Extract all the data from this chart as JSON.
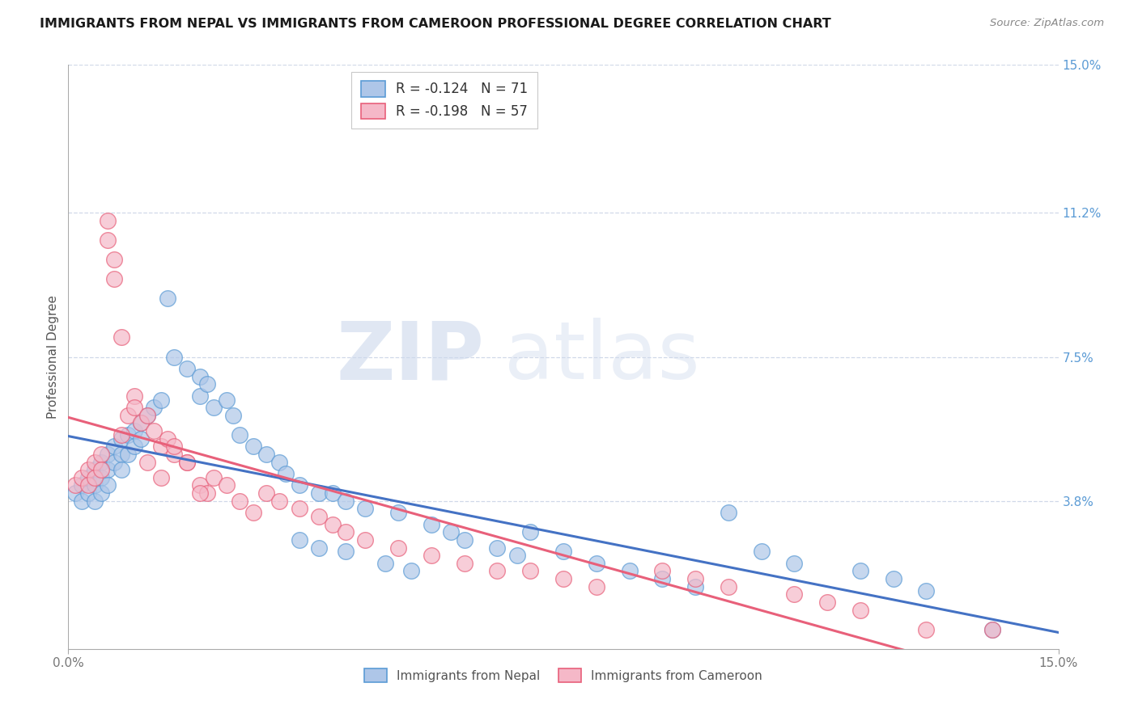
{
  "title": "IMMIGRANTS FROM NEPAL VS IMMIGRANTS FROM CAMEROON PROFESSIONAL DEGREE CORRELATION CHART",
  "source": "Source: ZipAtlas.com",
  "ylabel": "Professional Degree",
  "xlim": [
    0.0,
    0.15
  ],
  "ylim": [
    0.0,
    0.15
  ],
  "nepal_R": -0.124,
  "nepal_N": 71,
  "cameroon_R": -0.198,
  "cameroon_N": 57,
  "nepal_color": "#aec6e8",
  "cameroon_color": "#f5b8c8",
  "nepal_edge_color": "#5b9bd5",
  "cameroon_edge_color": "#e8607a",
  "nepal_line_color": "#4472c4",
  "cameroon_line_color": "#e8607a",
  "nepal_x": [
    0.001,
    0.002,
    0.002,
    0.003,
    0.003,
    0.004,
    0.004,
    0.004,
    0.005,
    0.005,
    0.005,
    0.006,
    0.006,
    0.006,
    0.007,
    0.007,
    0.008,
    0.008,
    0.008,
    0.009,
    0.009,
    0.01,
    0.01,
    0.011,
    0.011,
    0.012,
    0.013,
    0.014,
    0.015,
    0.016,
    0.018,
    0.02,
    0.02,
    0.021,
    0.022,
    0.024,
    0.025,
    0.026,
    0.028,
    0.03,
    0.032,
    0.033,
    0.035,
    0.038,
    0.04,
    0.042,
    0.045,
    0.05,
    0.055,
    0.058,
    0.06,
    0.065,
    0.068,
    0.07,
    0.075,
    0.08,
    0.085,
    0.09,
    0.095,
    0.1,
    0.105,
    0.11,
    0.12,
    0.125,
    0.13,
    0.035,
    0.038,
    0.042,
    0.048,
    0.052,
    0.14
  ],
  "nepal_y": [
    0.04,
    0.042,
    0.038,
    0.044,
    0.04,
    0.046,
    0.042,
    0.038,
    0.048,
    0.044,
    0.04,
    0.05,
    0.046,
    0.042,
    0.052,
    0.048,
    0.054,
    0.05,
    0.046,
    0.055,
    0.05,
    0.056,
    0.052,
    0.058,
    0.054,
    0.06,
    0.062,
    0.064,
    0.09,
    0.075,
    0.072,
    0.07,
    0.065,
    0.068,
    0.062,
    0.064,
    0.06,
    0.055,
    0.052,
    0.05,
    0.048,
    0.045,
    0.042,
    0.04,
    0.04,
    0.038,
    0.036,
    0.035,
    0.032,
    0.03,
    0.028,
    0.026,
    0.024,
    0.03,
    0.025,
    0.022,
    0.02,
    0.018,
    0.016,
    0.035,
    0.025,
    0.022,
    0.02,
    0.018,
    0.015,
    0.028,
    0.026,
    0.025,
    0.022,
    0.02,
    0.005
  ],
  "cameroon_x": [
    0.001,
    0.002,
    0.003,
    0.003,
    0.004,
    0.004,
    0.005,
    0.005,
    0.006,
    0.006,
    0.007,
    0.007,
    0.008,
    0.008,
    0.009,
    0.01,
    0.01,
    0.011,
    0.012,
    0.013,
    0.014,
    0.015,
    0.016,
    0.018,
    0.02,
    0.021,
    0.022,
    0.024,
    0.026,
    0.028,
    0.03,
    0.032,
    0.035,
    0.038,
    0.04,
    0.042,
    0.045,
    0.05,
    0.055,
    0.06,
    0.065,
    0.07,
    0.075,
    0.08,
    0.09,
    0.095,
    0.1,
    0.11,
    0.115,
    0.12,
    0.13,
    0.012,
    0.014,
    0.016,
    0.018,
    0.02,
    0.14
  ],
  "cameroon_y": [
    0.042,
    0.044,
    0.046,
    0.042,
    0.048,
    0.044,
    0.05,
    0.046,
    0.11,
    0.105,
    0.1,
    0.095,
    0.055,
    0.08,
    0.06,
    0.065,
    0.062,
    0.058,
    0.06,
    0.056,
    0.052,
    0.054,
    0.05,
    0.048,
    0.042,
    0.04,
    0.044,
    0.042,
    0.038,
    0.035,
    0.04,
    0.038,
    0.036,
    0.034,
    0.032,
    0.03,
    0.028,
    0.026,
    0.024,
    0.022,
    0.02,
    0.02,
    0.018,
    0.016,
    0.02,
    0.018,
    0.016,
    0.014,
    0.012,
    0.01,
    0.005,
    0.048,
    0.044,
    0.052,
    0.048,
    0.04,
    0.005
  ],
  "watermark_zip": "ZIP",
  "watermark_atlas": "atlas",
  "background_color": "#ffffff",
  "grid_color": "#d0d8e8",
  "y_ticks": [
    0.0,
    0.038,
    0.075,
    0.112,
    0.15
  ],
  "y_tick_labels": [
    "",
    "3.8%",
    "7.5%",
    "11.2%",
    "15.0%"
  ],
  "x_ticks": [
    0.0,
    0.15
  ],
  "x_tick_labels": [
    "0.0%",
    "15.0%"
  ]
}
